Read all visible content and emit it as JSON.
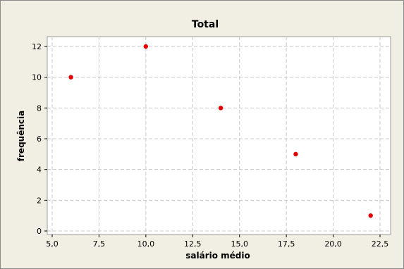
{
  "chart_data": {
    "type": "scatter",
    "title": "Total",
    "xlabel": "salário médio",
    "ylabel": "frequência",
    "xlim": [
      5.0,
      22.5
    ],
    "ylim": [
      0,
      12
    ],
    "xticks": [
      "5,0",
      "7,5",
      "10,0",
      "12,5",
      "15,0",
      "17,5",
      "20,0",
      "22,5"
    ],
    "xtick_values": [
      5.0,
      7.5,
      10.0,
      12.5,
      15.0,
      17.5,
      20.0,
      22.5
    ],
    "yticks": [
      "0",
      "2",
      "4",
      "6",
      "8",
      "10",
      "12"
    ],
    "ytick_values": [
      0,
      2,
      4,
      6,
      8,
      10,
      12
    ],
    "grid": true,
    "series": [
      {
        "points": [
          {
            "x": 6,
            "y": 10
          },
          {
            "x": 10,
            "y": 12
          },
          {
            "x": 14,
            "y": 8
          },
          {
            "x": 18,
            "y": 5
          },
          {
            "x": 22,
            "y": 1
          }
        ],
        "color": "#e00000"
      }
    ],
    "colors": {
      "background": "#f1efe3",
      "plot_area": "#ffffff",
      "grid": "#c8c8c8",
      "marker": "#e00000"
    }
  }
}
